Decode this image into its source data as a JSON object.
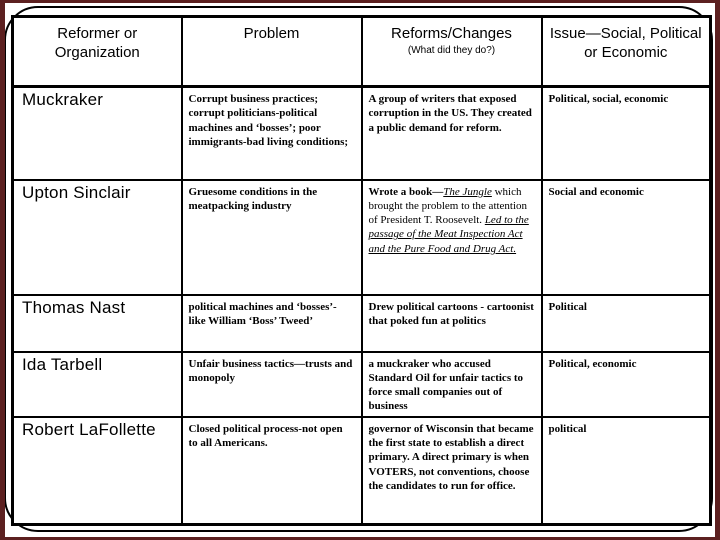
{
  "colors": {
    "edge_color": "#5c2020",
    "text_color": "#000000",
    "slide_bg": "#ffffff"
  },
  "slide": {
    "table": {
      "headers": {
        "reformer": "Reformer or Organization",
        "problem": "Problem",
        "reforms": "Reforms/Changes",
        "reforms_subtitle": "(What did they do?)",
        "issue": "Issue—Social, Political or Economic"
      },
      "rows": [
        {
          "reformer": "Muckraker",
          "problem": "Corrupt business practices; corrupt politicians-political machines and ‘bosses’; poor immigrants-bad living conditions;",
          "reforms": "A group of writers that exposed corruption in the US. They created a public demand for reform.",
          "issue": "Political, social, economic"
        },
        {
          "reformer": "Upton Sinclair",
          "problem": "Gruesome conditions in the meatpacking industry",
          "reforms_lead": "Wrote a book—",
          "reforms_book_title": "The Jungle",
          "reforms_middle": " which brought the problem to the attention of President T. Roosevelt.  ",
          "reforms_outcome": "Led to the passage of the Meat Inspection Act and the Pure Food and Drug Act.",
          "issue": "Social and economic"
        },
        {
          "reformer": "Thomas Nast",
          "problem": "political machines and ‘bosses’- like William ‘Boss’ Tweed’",
          "reforms": "Drew political cartoons - cartoonist that poked fun at politics",
          "issue": "Political"
        },
        {
          "reformer": "Ida Tarbell",
          "problem": "Unfair business tactics—trusts and monopoly",
          "reforms": "a muckraker who accused Standard Oil for unfair tactics to force small companies out of business",
          "issue": "Political, economic"
        },
        {
          "reformer": "Robert LaFollette",
          "problem": "Closed political process-not open to all Americans.",
          "reforms": "governor of Wisconsin that became the first state to establish a direct primary.  A direct primary is when VOTERS, not conventions, choose the candidates to run for office.",
          "issue": "political"
        }
      ]
    }
  }
}
